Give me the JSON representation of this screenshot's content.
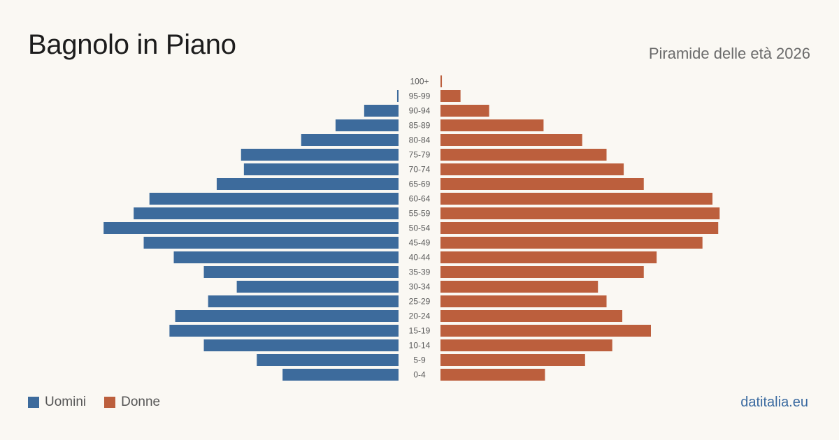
{
  "header": {
    "title": "Bagnolo in Piano",
    "subtitle": "Piramide delle età 2026"
  },
  "legend": [
    {
      "label": "Uomini",
      "color": "#3d6b9c"
    },
    {
      "label": "Donne",
      "color": "#bc5f3d"
    }
  ],
  "brand": "datitalia.eu",
  "chart_data": {
    "type": "bar",
    "orientation": "horizontal-pyramid",
    "categories": [
      "100+",
      "95-99",
      "90-94",
      "85-89",
      "80-84",
      "75-79",
      "70-74",
      "65-69",
      "60-64",
      "55-59",
      "50-54",
      "45-49",
      "40-44",
      "35-39",
      "30-34",
      "25-29",
      "20-24",
      "15-19",
      "10-14",
      "5-9",
      "0-4"
    ],
    "series": [
      {
        "name": "Uomini",
        "color": "#3d6b9c",
        "values": [
          0,
          1,
          24,
          44,
          68,
          110,
          108,
          127,
          174,
          185,
          206,
          178,
          157,
          136,
          113,
          133,
          156,
          160,
          136,
          99,
          81
        ]
      },
      {
        "name": "Donne",
        "color": "#bc5f3d",
        "values": [
          1,
          14,
          34,
          72,
          99,
          116,
          128,
          142,
          190,
          195,
          194,
          183,
          151,
          142,
          110,
          116,
          127,
          147,
          120,
          101,
          73
        ]
      }
    ],
    "xlim": [
      0,
      210
    ],
    "grid": false,
    "legend_position": "bottom-left"
  }
}
